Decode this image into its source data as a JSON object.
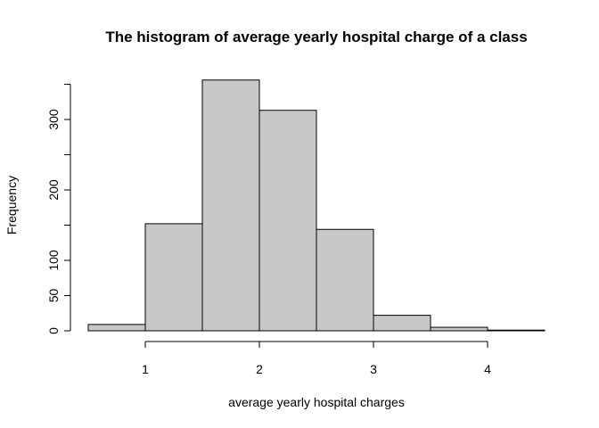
{
  "chart_data": {
    "type": "bar",
    "title": "The histogram of average yearly hospital charge of a class",
    "xlabel": "average yearly hospital charges",
    "ylabel": "Frequency",
    "bins": [
      {
        "from": 0.5,
        "to": 1.0,
        "count": 9
      },
      {
        "from": 1.0,
        "to": 1.5,
        "count": 152
      },
      {
        "from": 1.5,
        "to": 2.0,
        "count": 356
      },
      {
        "from": 2.0,
        "to": 2.5,
        "count": 313
      },
      {
        "from": 2.5,
        "to": 3.0,
        "count": 144
      },
      {
        "from": 3.0,
        "to": 3.5,
        "count": 22
      },
      {
        "from": 3.5,
        "to": 4.0,
        "count": 5
      },
      {
        "from": 4.0,
        "to": 4.5,
        "count": 1
      }
    ],
    "xlim": [
      0.5,
      4.5
    ],
    "ylim": [
      0,
      350
    ],
    "x_ticks": [
      "1",
      "2",
      "3",
      "4"
    ],
    "y_ticks": [
      "0",
      "50",
      "100",
      "200",
      "300"
    ],
    "grid": false,
    "colors": {
      "bar_fill": "#c8c8c8",
      "bar_stroke": "#000000"
    }
  }
}
